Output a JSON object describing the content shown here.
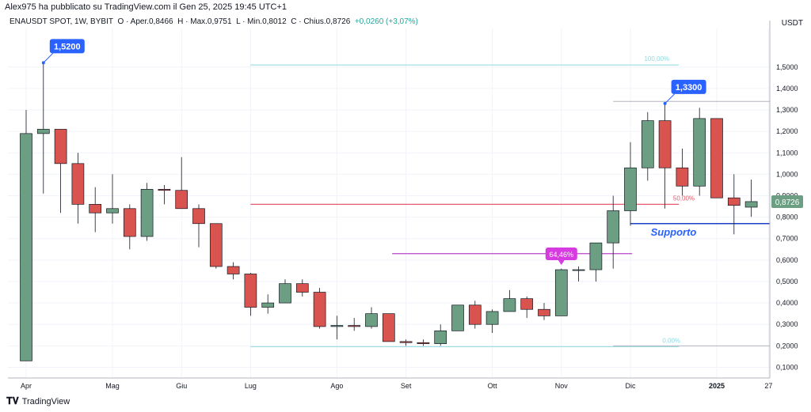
{
  "header": {
    "publish_text": "Alex975 ha pubblicato su TradingView.com il Gen 25, 2025 19:45 UTC+1"
  },
  "legend": {
    "symbol": "ENAUSDT SPOT, 1W, BYBIT",
    "open": "O · Aper.0,8466",
    "high": "H · Max.0,9751",
    "low": "L · Min.0,8012",
    "close": "C · Chius.0,8726",
    "change": "+0,0260 (+3,07%)"
  },
  "axis": {
    "unit": "USDT"
  },
  "footer": {
    "brand": "TradingView"
  },
  "colors": {
    "up": "#6b9e82",
    "down": "#d9534f",
    "blue": "#2962ff",
    "pink": "#d63ae0"
  },
  "chart_data": {
    "type": "candlestick",
    "ylim": [
      0.05,
      1.68
    ],
    "y_ticks": [
      {
        "v": 0.1,
        "label": "0,1000"
      },
      {
        "v": 0.2,
        "label": "0,2000"
      },
      {
        "v": 0.3,
        "label": "0,3000"
      },
      {
        "v": 0.4,
        "label": "0,4000"
      },
      {
        "v": 0.5,
        "label": "0,5000"
      },
      {
        "v": 0.6,
        "label": "0,6000"
      },
      {
        "v": 0.7,
        "label": "0,7000"
      },
      {
        "v": 0.8,
        "label": "0,8000"
      },
      {
        "v": 0.9,
        "label": "0,9000"
      },
      {
        "v": 1.0,
        "label": "1,0000"
      },
      {
        "v": 1.1,
        "label": "1,1000"
      },
      {
        "v": 1.2,
        "label": "1,2000"
      },
      {
        "v": 1.3,
        "label": "1,3000"
      },
      {
        "v": 1.4,
        "label": "1,4000"
      },
      {
        "v": 1.5,
        "label": "1,5000"
      }
    ],
    "x_ticks": [
      {
        "i": 0,
        "label": "Apr"
      },
      {
        "i": 5,
        "label": "Mag"
      },
      {
        "i": 9,
        "label": "Giu"
      },
      {
        "i": 13,
        "label": "Lug"
      },
      {
        "i": 18,
        "label": "Ago"
      },
      {
        "i": 22,
        "label": "Set"
      },
      {
        "i": 27,
        "label": "Ott"
      },
      {
        "i": 31,
        "label": "Nov"
      },
      {
        "i": 35,
        "label": "Dic"
      },
      {
        "i": 40,
        "label": "2025"
      },
      {
        "i": 43,
        "label": "27"
      }
    ],
    "candles": [
      {
        "o": 0.13,
        "h": 1.3,
        "l": 0.13,
        "c": 1.19
      },
      {
        "o": 1.19,
        "h": 1.52,
        "l": 0.91,
        "c": 1.21
      },
      {
        "o": 1.21,
        "h": 1.21,
        "l": 0.82,
        "c": 1.05
      },
      {
        "o": 1.05,
        "h": 1.1,
        "l": 0.77,
        "c": 0.86
      },
      {
        "o": 0.86,
        "h": 0.94,
        "l": 0.73,
        "c": 0.82
      },
      {
        "o": 0.82,
        "h": 1.0,
        "l": 0.77,
        "c": 0.84
      },
      {
        "o": 0.84,
        "h": 0.86,
        "l": 0.65,
        "c": 0.71
      },
      {
        "o": 0.71,
        "h": 0.96,
        "l": 0.69,
        "c": 0.93
      },
      {
        "o": 0.93,
        "h": 0.95,
        "l": 0.86,
        "c": 0.925
      },
      {
        "o": 0.925,
        "h": 1.08,
        "l": 0.84,
        "c": 0.84
      },
      {
        "o": 0.84,
        "h": 0.86,
        "l": 0.66,
        "c": 0.77
      },
      {
        "o": 0.77,
        "h": 0.77,
        "l": 0.56,
        "c": 0.57
      },
      {
        "o": 0.57,
        "h": 0.59,
        "l": 0.51,
        "c": 0.535
      },
      {
        "o": 0.535,
        "h": 0.54,
        "l": 0.34,
        "c": 0.38
      },
      {
        "o": 0.38,
        "h": 0.44,
        "l": 0.35,
        "c": 0.4
      },
      {
        "o": 0.4,
        "h": 0.51,
        "l": 0.4,
        "c": 0.49
      },
      {
        "o": 0.49,
        "h": 0.51,
        "l": 0.43,
        "c": 0.45
      },
      {
        "o": 0.45,
        "h": 0.47,
        "l": 0.28,
        "c": 0.29
      },
      {
        "o": 0.29,
        "h": 0.34,
        "l": 0.23,
        "c": 0.295
      },
      {
        "o": 0.295,
        "h": 0.33,
        "l": 0.27,
        "c": 0.29
      },
      {
        "o": 0.29,
        "h": 0.38,
        "l": 0.28,
        "c": 0.35
      },
      {
        "o": 0.35,
        "h": 0.35,
        "l": 0.22,
        "c": 0.22
      },
      {
        "o": 0.22,
        "h": 0.23,
        "l": 0.2,
        "c": 0.215
      },
      {
        "o": 0.215,
        "h": 0.23,
        "l": 0.2,
        "c": 0.21
      },
      {
        "o": 0.21,
        "h": 0.3,
        "l": 0.2,
        "c": 0.27
      },
      {
        "o": 0.27,
        "h": 0.39,
        "l": 0.27,
        "c": 0.39
      },
      {
        "o": 0.39,
        "h": 0.41,
        "l": 0.28,
        "c": 0.3
      },
      {
        "o": 0.3,
        "h": 0.37,
        "l": 0.26,
        "c": 0.36
      },
      {
        "o": 0.36,
        "h": 0.46,
        "l": 0.36,
        "c": 0.42
      },
      {
        "o": 0.42,
        "h": 0.43,
        "l": 0.33,
        "c": 0.37
      },
      {
        "o": 0.37,
        "h": 0.4,
        "l": 0.32,
        "c": 0.34
      },
      {
        "o": 0.34,
        "h": 0.56,
        "l": 0.34,
        "c": 0.555
      },
      {
        "o": 0.555,
        "h": 0.57,
        "l": 0.5,
        "c": 0.555
      },
      {
        "o": 0.555,
        "h": 0.68,
        "l": 0.5,
        "c": 0.68
      },
      {
        "o": 0.68,
        "h": 0.9,
        "l": 0.56,
        "c": 0.83
      },
      {
        "o": 0.83,
        "h": 1.15,
        "l": 0.76,
        "c": 1.03
      },
      {
        "o": 1.03,
        "h": 1.29,
        "l": 0.97,
        "c": 1.25
      },
      {
        "o": 1.25,
        "h": 1.33,
        "l": 0.84,
        "c": 1.03
      },
      {
        "o": 1.03,
        "h": 1.12,
        "l": 0.9,
        "c": 0.945
      },
      {
        "o": 0.945,
        "h": 1.31,
        "l": 0.9,
        "c": 1.26
      },
      {
        "o": 1.26,
        "h": 1.26,
        "l": 0.89,
        "c": 0.89
      },
      {
        "o": 0.89,
        "h": 1.0,
        "l": 0.72,
        "c": 0.855
      },
      {
        "o": 0.8466,
        "h": 0.9751,
        "l": 0.8012,
        "c": 0.8726
      }
    ],
    "last_price": {
      "value": 0.8726,
      "label": "0,8726"
    },
    "annotations": {
      "callout_high": {
        "label": "1,5200",
        "value": 1.52,
        "i": 1
      },
      "callout_dec": {
        "label": "1,3300",
        "value": 1.33,
        "i": 37
      },
      "callout_pct": {
        "label": "64,46%",
        "value": 0.555,
        "i": 31
      },
      "support": {
        "label": "Supporto",
        "value": 0.77
      },
      "fib_100": {
        "label": "100,00%",
        "value": 1.51
      },
      "fib_50": {
        "label": "50,00%",
        "value": 0.86
      },
      "fib_0": {
        "label": "0,00%",
        "value": 0.2
      },
      "magenta_line": {
        "value": 0.63
      },
      "grey_line_top": {
        "value": 1.34
      },
      "grey_line_bottom": {
        "value": 0.2
      }
    }
  }
}
